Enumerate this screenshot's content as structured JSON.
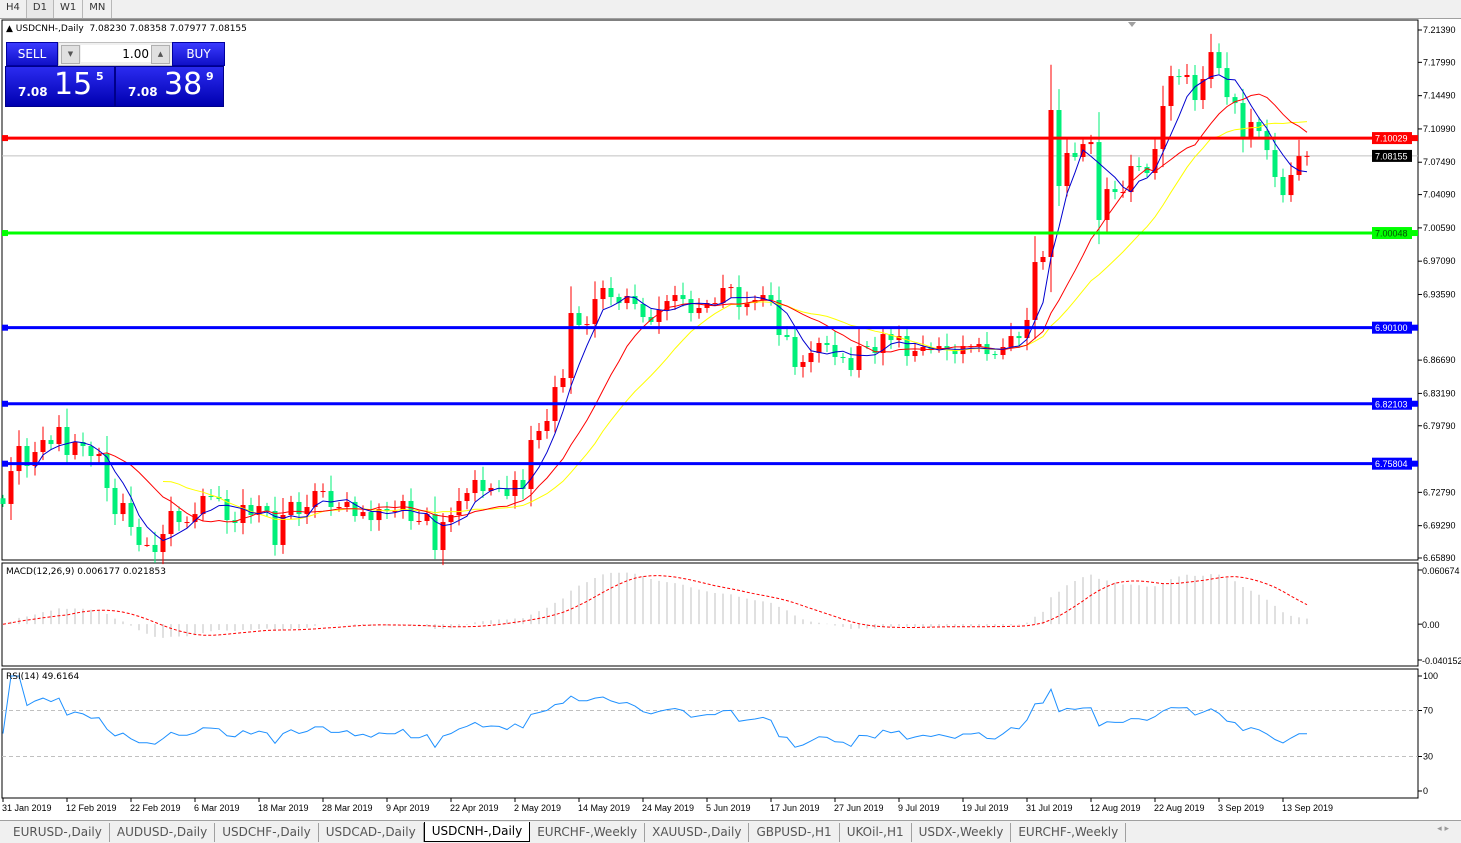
{
  "timeframes": [
    {
      "label": "H4"
    },
    {
      "label": "D1",
      "active": true
    },
    {
      "label": "W1"
    },
    {
      "label": "MN"
    }
  ],
  "chart_title": {
    "symbol": "USDCNH-,Daily",
    "ohlc": "7.08230 7.08358 7.07977 7.08155"
  },
  "trade_panel": {
    "sell_label": "SELL",
    "buy_label": "BUY",
    "lot": "1.00",
    "sell": {
      "prefix": "7.08",
      "big": "15",
      "sup": "5"
    },
    "buy": {
      "prefix": "7.08",
      "big": "38",
      "sup": "9"
    }
  },
  "colors": {
    "bull_candle": "#ff0000",
    "bear_candle": "#00f07a",
    "ma_fast": "#0000d0",
    "ma_mid": "#ff0000",
    "ma_slow": "#ffff00",
    "macd_hist": "#c0c0c0",
    "macd_signal": "#ff0000",
    "rsi": "#1e90ff",
    "price_line": "#c0c0c0"
  },
  "chart_data": {
    "type": "candlestick",
    "price_axis": {
      "range": [
        6.6589,
        7.2139
      ],
      "ticks": [
        "7.21390",
        "7.17990",
        "7.14490",
        "7.10990",
        "7.07490",
        "7.04090",
        "7.00590",
        "6.97090",
        "6.93590",
        "6.86690",
        "6.83190",
        "6.79790",
        "6.72790",
        "6.69290",
        "6.65890"
      ]
    },
    "horizontal_lines": [
      {
        "price": 7.10029,
        "label": "7.10029",
        "color": "#ff0000"
      },
      {
        "price": 7.00048,
        "label": "7.00048",
        "color": "#00ff00"
      },
      {
        "price": 6.901,
        "label": "6.90100",
        "color": "#0000ff"
      },
      {
        "price": 6.82103,
        "label": "6.82103",
        "color": "#0000ff"
      },
      {
        "price": 6.75804,
        "label": "6.75804",
        "color": "#0000ff"
      }
    ],
    "current_price": {
      "price": 7.08155,
      "label": "7.08155"
    },
    "date_labels": [
      "31 Jan 2019",
      "12 Feb 2019",
      "22 Feb 2019",
      "6 Mar 2019",
      "18 Mar 2019",
      "28 Mar 2019",
      "9 Apr 2019",
      "22 Apr 2019",
      "2 May 2019",
      "14 May 2019",
      "24 May 2019",
      "5 Jun 2019",
      "17 Jun 2019",
      "27 Jun 2019",
      "9 Jul 2019",
      "19 Jul 2019",
      "31 Jul 2019",
      "12 Aug 2019",
      "22 Aug 2019",
      "3 Sep 2019",
      "13 Sep 2019"
    ],
    "closes": [
      6.7157,
      6.7503,
      6.7766,
      6.7556,
      6.7703,
      6.7829,
      6.7787,
      6.7966,
      6.7672,
      6.7808,
      6.7766,
      6.7661,
      6.7682,
      6.7325,
      6.7051,
      6.7167,
      6.6915,
      6.6726,
      6.6726,
      6.6652,
      6.6841,
      6.7083,
      6.6967,
      6.6967,
      6.7051,
      6.7241,
      6.723,
      6.7209,
      6.6988,
      6.6957,
      6.7146,
      6.7041,
      6.7135,
      6.7083,
      6.6726,
      6.7041,
      6.7178,
      6.7051,
      6.7125,
      6.7293,
      6.7293,
      6.7125,
      6.7125,
      6.7178,
      6.703,
      6.7072,
      6.6988,
      6.7104,
      6.7083,
      6.7083,
      6.7188,
      6.6978,
      6.6978,
      6.7051,
      6.6673,
      6.6967,
      6.7041,
      6.7188,
      6.7272,
      6.7409,
      6.7293,
      6.7325,
      6.7314,
      6.7241,
      6.7409,
      6.7314,
      6.7829,
      6.7924,
      6.8029,
      6.8386,
      6.8481,
      6.9164,
      6.9038,
      6.9048,
      6.9311,
      6.9427,
      6.9332,
      6.9269,
      6.9343,
      6.9259,
      6.9122,
      6.907,
      6.9196,
      6.929,
      6.9353,
      6.9311,
      6.9164,
      6.9217,
      6.9269,
      6.9269,
      6.9427,
      6.9437,
      6.9227,
      6.9269,
      6.9301,
      6.9353,
      6.9301,
      6.8933,
      6.8912,
      6.8597,
      6.8649,
      6.8744,
      6.8849,
      6.8828,
      6.8702,
      6.8691,
      6.8565,
      6.8817,
      6.8807,
      6.8744,
      6.8943,
      6.888,
      6.8922,
      6.8712,
      6.8765,
      6.8807,
      6.8775,
      6.8817,
      6.8775,
      6.8733,
      6.8817,
      6.8817,
      6.8838,
      6.8733,
      6.8723,
      6.8807,
      6.8922,
      6.8901,
      6.9091,
      6.97,
      6.9753,
      7.1298,
      7.0499,
      7.0846,
      7.0804,
      7.094,
      7.0961,
      7.0142,
      7.0467,
      7.0436,
      7.0436,
      7.0709,
      7.0699,
      7.0636,
      7.0888,
      7.134,
      7.1655,
      7.1645,
      7.1666,
      7.1403,
      7.1624,
      7.1907,
      7.1739,
      7.1434,
      7.1371,
      7.1014,
      7.1172,
      7.1077,
      7.0877,
      7.0594,
      7.0404,
      7.0615,
      7.0814,
      7.08155
    ],
    "macd": {
      "label": "MACD(12,26,9) 0.006177 0.021853",
      "axis": [
        "0.060674",
        "0.00",
        "-0.040152"
      ],
      "range": [
        -0.040152,
        0.060674
      ]
    },
    "rsi": {
      "label": "RSI(14) 49.6164",
      "axis": [
        "100",
        "70",
        "30",
        "0"
      ],
      "levels": [
        70,
        30
      ]
    }
  },
  "tabs": [
    {
      "label": "EURUSD-,Daily"
    },
    {
      "label": "AUDUSD-,Daily"
    },
    {
      "label": "USDCHF-,Daily"
    },
    {
      "label": "USDCAD-,Daily"
    },
    {
      "label": "USDCNH-,Daily",
      "active": true
    },
    {
      "label": "EURCHF-,Weekly"
    },
    {
      "label": "XAUUSD-,Daily"
    },
    {
      "label": "GBPUSD-,H1"
    },
    {
      "label": "UKOil-,H1"
    },
    {
      "label": "USDX-,Weekly"
    },
    {
      "label": "EURCHF-,Weekly"
    }
  ],
  "tab_nav": "◂ ▸"
}
